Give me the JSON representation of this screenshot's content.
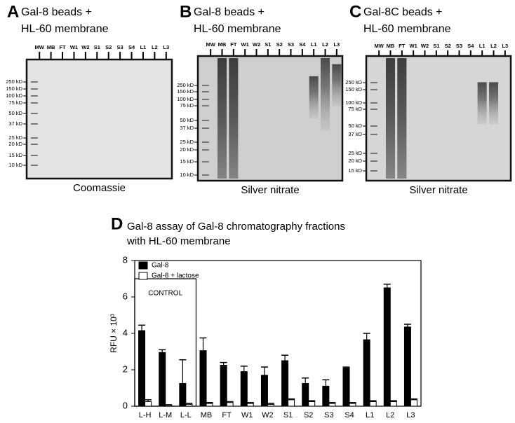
{
  "panels": [
    {
      "letter": "A",
      "title": [
        "Gal-8 beads +",
        "HL-60 membrane"
      ],
      "lanes": [
        "MW",
        "MB",
        "FT",
        "W1",
        "W2",
        "S1",
        "S2",
        "S3",
        "S4",
        "L1",
        "L2",
        "L3"
      ],
      "markers": [
        "250 kD",
        "150 kD",
        "100 kD",
        "75 kD",
        "50 kD",
        "37 kD",
        "25 kD",
        "20 kD",
        "15 kD",
        "10 kD"
      ],
      "caption": "Coomassie"
    },
    {
      "letter": "B",
      "title": [
        "Gal-8 beads +",
        "HL-60 membrane"
      ],
      "lanes": [
        "MW",
        "MB",
        "FT",
        "W1",
        "W2",
        "S1",
        "S2",
        "S3",
        "S4",
        "L1",
        "L2",
        "L3"
      ],
      "markers": [
        "250 kD",
        "150 kD",
        "100 kD",
        "75 kD",
        "50 kD",
        "37 kD",
        "25 kD",
        "20 kD",
        "15 kD",
        "10 kD"
      ],
      "caption": "Silver nitrate"
    },
    {
      "letter": "C",
      "title": [
        "Gal-8C beads +",
        "HL-60 membrane"
      ],
      "lanes": [
        "MW",
        "MB",
        "FT",
        "W1",
        "W2",
        "S1",
        "S2",
        "S3",
        "S4",
        "L1",
        "L2",
        "L3"
      ],
      "markers": [
        "250 kD",
        "150 kD",
        "100 kD",
        "75 kD",
        "50 kD",
        "37 kD",
        "25 kD",
        "20 kD",
        "15 kD"
      ],
      "caption": "Silver nitrate"
    }
  ],
  "chart_data": {
    "type": "bar",
    "letter": "D",
    "title": [
      "Gal-8 assay of Gal-8 chromatography fractions",
      "with HL-60 membrane"
    ],
    "y_label": "RFU × 10³",
    "annotation": "CONTROL",
    "categories": [
      "L-H",
      "L-M",
      "L-L",
      "MB",
      "FT",
      "W1",
      "W2",
      "S1",
      "S2",
      "S3",
      "S4",
      "L1",
      "L2",
      "L3"
    ],
    "series": [
      {
        "name": "Gal-8",
        "color": "#000000",
        "values": [
          4.15,
          2.95,
          1.25,
          3.05,
          2.25,
          1.9,
          1.7,
          2.5,
          1.25,
          1.1,
          2.1,
          3.65,
          6.5,
          4.35
        ],
        "errors": [
          0.3,
          0.15,
          1.3,
          0.7,
          0.15,
          0.3,
          0.45,
          0.3,
          0.3,
          0.35,
          0.05,
          0.35,
          0.2,
          0.15
        ]
      },
      {
        "name": "Gal-8 + lactose",
        "color": "#ffffff",
        "values": [
          0.25,
          0.05,
          0.1,
          0.15,
          0.2,
          0.15,
          0.1,
          0.35,
          0.25,
          0.15,
          0.15,
          0.25,
          0.25,
          0.35
        ],
        "errors": [
          0.1,
          0.03,
          0.05,
          0.05,
          0.05,
          0.05,
          0.05,
          0.05,
          0.05,
          0.05,
          0.05,
          0.05,
          0.05,
          0.05
        ]
      }
    ],
    "ylim": [
      0,
      8
    ],
    "yticks": [
      0,
      2,
      4,
      6,
      8
    ],
    "legend": "upper left"
  }
}
